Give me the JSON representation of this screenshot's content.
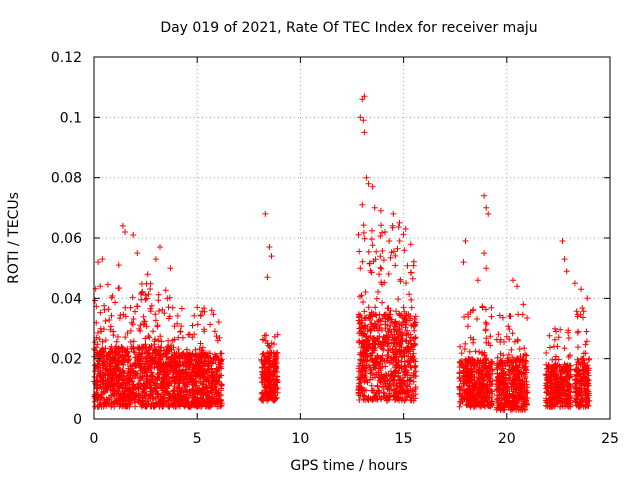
{
  "chart_data": {
    "type": "scatter",
    "title": "Day 019 of 2021, Rate Of TEC Index for receiver maju",
    "xlabel": "GPS time / hours",
    "ylabel": "ROTI / TECUs",
    "xlim": [
      0,
      25
    ],
    "ylim": [
      0,
      0.12
    ],
    "x_ticks": [
      0,
      5,
      10,
      15,
      20,
      25
    ],
    "x_tick_labels": [
      "0",
      "5",
      "10",
      "15",
      "20",
      "25"
    ],
    "y_ticks": [
      0,
      0.02,
      0.04,
      0.06,
      0.08,
      0.1,
      0.12
    ],
    "y_tick_labels": [
      "0",
      "0.02",
      "0.04",
      "0.06",
      "0.08",
      "0.1",
      "0.12"
    ],
    "grid": true,
    "marker": "+",
    "color": "#ff0000",
    "segments": [
      {
        "x_start": 0.0,
        "x_end": 3.8,
        "base_low": 0.004,
        "base_high": 0.024,
        "spread_max": 0.045
      },
      {
        "x_start": 3.8,
        "x_end": 6.2,
        "base_low": 0.004,
        "base_high": 0.022,
        "spread_max": 0.038
      },
      {
        "x_start": 8.1,
        "x_end": 8.9,
        "base_low": 0.006,
        "base_high": 0.022,
        "spread_max": 0.03
      },
      {
        "x_start": 12.8,
        "x_end": 15.6,
        "base_low": 0.006,
        "base_high": 0.035,
        "spread_max": 0.065
      },
      {
        "x_start": 17.7,
        "x_end": 19.3,
        "base_low": 0.004,
        "base_high": 0.02,
        "spread_max": 0.038
      },
      {
        "x_start": 19.5,
        "x_end": 21.0,
        "base_low": 0.003,
        "base_high": 0.02,
        "spread_max": 0.035
      },
      {
        "x_start": 21.9,
        "x_end": 23.1,
        "base_low": 0.004,
        "base_high": 0.018,
        "spread_max": 0.03
      },
      {
        "x_start": 23.3,
        "x_end": 24.0,
        "base_low": 0.004,
        "base_high": 0.02,
        "spread_max": 0.038
      }
    ],
    "outliers": [
      {
        "x": 0.2,
        "y": 0.052
      },
      {
        "x": 0.4,
        "y": 0.053
      },
      {
        "x": 1.2,
        "y": 0.051
      },
      {
        "x": 1.4,
        "y": 0.064
      },
      {
        "x": 1.5,
        "y": 0.062
      },
      {
        "x": 1.9,
        "y": 0.061
      },
      {
        "x": 2.1,
        "y": 0.055
      },
      {
        "x": 2.6,
        "y": 0.048
      },
      {
        "x": 3.0,
        "y": 0.053
      },
      {
        "x": 3.2,
        "y": 0.057
      },
      {
        "x": 3.7,
        "y": 0.05
      },
      {
        "x": 5.0,
        "y": 0.037
      },
      {
        "x": 8.3,
        "y": 0.068
      },
      {
        "x": 8.5,
        "y": 0.057
      },
      {
        "x": 8.6,
        "y": 0.054
      },
      {
        "x": 8.4,
        "y": 0.047
      },
      {
        "x": 13.0,
        "y": 0.106
      },
      {
        "x": 13.1,
        "y": 0.107
      },
      {
        "x": 12.9,
        "y": 0.1
      },
      {
        "x": 13.05,
        "y": 0.099
      },
      {
        "x": 13.1,
        "y": 0.095
      },
      {
        "x": 13.2,
        "y": 0.08
      },
      {
        "x": 13.3,
        "y": 0.078
      },
      {
        "x": 13.5,
        "y": 0.077
      },
      {
        "x": 13.0,
        "y": 0.071
      },
      {
        "x": 13.6,
        "y": 0.07
      },
      {
        "x": 13.9,
        "y": 0.069
      },
      {
        "x": 14.5,
        "y": 0.068
      },
      {
        "x": 14.8,
        "y": 0.065
      },
      {
        "x": 15.1,
        "y": 0.063
      },
      {
        "x": 12.9,
        "y": 0.05
      },
      {
        "x": 14.1,
        "y": 0.062
      },
      {
        "x": 14.3,
        "y": 0.059
      },
      {
        "x": 18.0,
        "y": 0.059
      },
      {
        "x": 17.9,
        "y": 0.052
      },
      {
        "x": 18.6,
        "y": 0.046
      },
      {
        "x": 18.9,
        "y": 0.074
      },
      {
        "x": 19.0,
        "y": 0.07
      },
      {
        "x": 19.1,
        "y": 0.068
      },
      {
        "x": 18.9,
        "y": 0.055
      },
      {
        "x": 19.0,
        "y": 0.05
      },
      {
        "x": 20.3,
        "y": 0.046
      },
      {
        "x": 20.5,
        "y": 0.044
      },
      {
        "x": 22.7,
        "y": 0.059
      },
      {
        "x": 22.8,
        "y": 0.053
      },
      {
        "x": 22.9,
        "y": 0.049
      },
      {
        "x": 23.3,
        "y": 0.045
      },
      {
        "x": 23.6,
        "y": 0.043
      },
      {
        "x": 23.9,
        "y": 0.04
      },
      {
        "x": 15.0,
        "y": 0.037
      },
      {
        "x": 20.8,
        "y": 0.038
      },
      {
        "x": 6.0,
        "y": 0.026
      }
    ]
  }
}
